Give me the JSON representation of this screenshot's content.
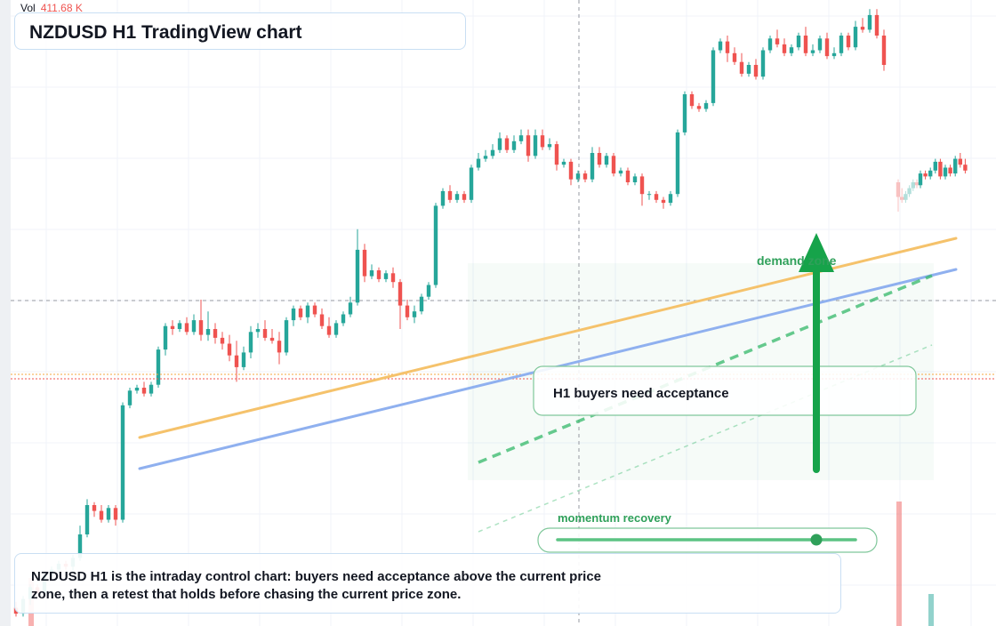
{
  "header": {
    "title": "NZDUSD H1 TradingView chart",
    "volume_label": "Vol",
    "volume_value": "411.68 K"
  },
  "annotations": {
    "callout": "H1 buyers need acceptance",
    "zone_label": "demand zone",
    "momentum_label": "momentum recovery",
    "note": "NZDUSD H1 is the intraday control chart: buyers need acceptance above the current price zone, then a retest that holds before chasing the current price zone."
  },
  "colors": {
    "up": "#26a69a",
    "down": "#ef5350",
    "accent": "#16a34a",
    "trend_orange": "#f5c26b",
    "trend_blue": "#8fb0ef"
  },
  "chart_data": {
    "type": "candlestick",
    "symbol": "NZDUSD",
    "timeframe": "H1",
    "candles": [
      [
        5,
        3,
        7,
        2
      ],
      [
        3,
        8,
        9,
        2
      ],
      [
        8,
        12,
        13,
        6
      ],
      [
        12,
        10,
        13,
        9
      ],
      [
        10,
        16,
        17,
        9
      ],
      [
        16,
        18,
        19,
        15
      ],
      [
        18,
        20,
        21,
        17
      ],
      [
        20,
        19,
        21,
        18
      ],
      [
        19,
        22,
        23,
        17
      ],
      [
        22,
        30,
        33,
        21
      ],
      [
        30,
        40,
        42,
        29
      ],
      [
        40,
        38,
        41,
        36
      ],
      [
        38,
        35,
        40,
        34
      ],
      [
        35,
        39,
        40,
        34
      ],
      [
        39,
        35,
        40,
        33
      ],
      [
        35,
        74,
        75,
        34
      ],
      [
        74,
        79,
        80,
        73
      ],
      [
        79,
        80,
        81,
        78
      ],
      [
        80,
        78,
        82,
        77
      ],
      [
        78,
        81,
        82,
        77
      ],
      [
        81,
        93,
        94,
        80
      ],
      [
        93,
        101,
        102,
        91
      ],
      [
        101,
        100,
        103,
        98
      ],
      [
        100,
        102,
        103,
        99
      ],
      [
        102,
        99,
        104,
        98
      ],
      [
        99,
        103,
        105,
        98
      ],
      [
        103,
        98,
        110,
        96
      ],
      [
        98,
        100,
        106,
        96
      ],
      [
        100,
        97,
        102,
        95
      ],
      [
        97,
        95,
        99,
        93
      ],
      [
        95,
        91,
        98,
        89
      ],
      [
        91,
        87,
        96,
        82
      ],
      [
        87,
        92,
        94,
        86
      ],
      [
        92,
        99,
        101,
        90
      ],
      [
        99,
        100,
        102,
        97
      ],
      [
        100,
        97,
        103,
        96
      ],
      [
        97,
        96,
        100,
        95
      ],
      [
        96,
        92,
        99,
        88
      ],
      [
        92,
        103,
        104,
        91
      ],
      [
        103,
        107,
        108,
        101
      ],
      [
        107,
        104,
        108,
        103
      ],
      [
        104,
        108,
        109,
        102
      ],
      [
        108,
        105,
        109,
        104
      ],
      [
        105,
        101,
        107,
        100
      ],
      [
        101,
        98,
        104,
        97
      ],
      [
        98,
        102,
        103,
        97
      ],
      [
        102,
        105,
        106,
        101
      ],
      [
        105,
        109,
        111,
        104
      ],
      [
        109,
        127,
        134,
        108
      ],
      [
        127,
        118,
        129,
        116
      ],
      [
        118,
        120,
        122,
        117
      ],
      [
        120,
        117,
        121,
        116
      ],
      [
        117,
        119,
        120,
        116
      ],
      [
        119,
        116,
        121,
        114
      ],
      [
        116,
        108,
        117,
        100
      ],
      [
        108,
        104,
        110,
        103
      ],
      [
        104,
        106,
        108,
        102
      ],
      [
        106,
        111,
        112,
        105
      ],
      [
        111,
        115,
        116,
        110
      ],
      [
        115,
        142,
        143,
        114
      ],
      [
        142,
        147,
        148,
        141
      ],
      [
        147,
        144,
        149,
        143
      ],
      [
        144,
        146,
        147,
        143
      ],
      [
        146,
        144,
        147,
        143
      ],
      [
        144,
        155,
        156,
        143
      ],
      [
        155,
        158,
        160,
        154
      ],
      [
        158,
        159,
        161,
        157
      ],
      [
        159,
        161,
        163,
        158
      ],
      [
        161,
        165,
        167,
        160
      ],
      [
        165,
        161,
        166,
        160
      ],
      [
        161,
        164,
        166,
        160
      ],
      [
        164,
        166,
        168,
        163
      ],
      [
        166,
        159,
        168,
        157
      ],
      [
        159,
        166,
        168,
        158
      ],
      [
        166,
        162,
        168,
        161
      ],
      [
        162,
        163,
        165,
        161
      ],
      [
        163,
        156,
        164,
        154
      ],
      [
        156,
        157,
        158,
        155
      ],
      [
        157,
        151,
        158,
        149
      ],
      [
        151,
        153,
        154,
        150
      ],
      [
        153,
        151,
        154,
        150
      ],
      [
        151,
        160,
        162,
        150
      ],
      [
        160,
        156,
        162,
        155
      ],
      [
        156,
        159,
        160,
        155
      ],
      [
        159,
        153,
        160,
        152
      ],
      [
        153,
        154,
        155,
        152
      ],
      [
        154,
        150,
        155,
        149
      ],
      [
        150,
        152,
        153,
        149
      ],
      [
        152,
        146,
        153,
        142
      ],
      [
        146,
        146,
        147,
        144
      ],
      [
        146,
        144,
        147,
        143
      ],
      [
        144,
        143,
        145,
        141
      ],
      [
        143,
        146,
        147,
        142
      ],
      [
        146,
        167,
        168,
        145
      ],
      [
        167,
        180,
        181,
        166
      ],
      [
        180,
        176,
        181,
        175
      ],
      [
        176,
        175,
        177,
        174
      ],
      [
        175,
        177,
        178,
        174
      ],
      [
        177,
        195,
        196,
        176
      ],
      [
        195,
        198,
        199,
        194
      ],
      [
        198,
        194,
        200,
        191
      ],
      [
        194,
        191,
        196,
        190
      ],
      [
        191,
        187,
        194,
        186
      ],
      [
        187,
        190,
        191,
        186
      ],
      [
        190,
        186,
        192,
        185
      ],
      [
        186,
        195,
        196,
        185
      ],
      [
        195,
        199,
        200,
        194
      ],
      [
        199,
        197,
        202,
        196
      ],
      [
        197,
        194,
        199,
        193
      ],
      [
        194,
        196,
        197,
        193
      ],
      [
        196,
        200,
        201,
        195
      ],
      [
        200,
        194,
        203,
        193
      ],
      [
        194,
        195,
        197,
        193
      ],
      [
        195,
        199,
        200,
        194
      ],
      [
        199,
        193,
        201,
        192
      ],
      [
        193,
        194,
        196,
        192
      ],
      [
        194,
        200,
        201,
        193
      ],
      [
        200,
        196,
        201,
        195
      ],
      [
        196,
        203,
        205,
        195
      ],
      [
        203,
        202,
        206,
        201
      ],
      [
        202,
        207,
        209,
        201
      ],
      [
        207,
        200,
        209,
        199
      ],
      [
        200,
        190,
        202,
        188
      ]
    ],
    "candles_right": [
      [
        150,
        145,
        151,
        140
      ],
      [
        145,
        144,
        148,
        143
      ],
      [
        144,
        146,
        147,
        143
      ],
      [
        146,
        148,
        149,
        145
      ],
      [
        148,
        150,
        151,
        147
      ],
      [
        150,
        149,
        151,
        148
      ],
      [
        149,
        153,
        154,
        148
      ],
      [
        153,
        152,
        154,
        151
      ],
      [
        152,
        154,
        155,
        151
      ],
      [
        154,
        157,
        158,
        153
      ],
      [
        157,
        152,
        158,
        151
      ],
      [
        152,
        155,
        156,
        151
      ],
      [
        155,
        153,
        156,
        152
      ],
      [
        153,
        158,
        159,
        152
      ],
      [
        158,
        156,
        160,
        155
      ],
      [
        156,
        154,
        158,
        153
      ]
    ],
    "volume_visible": "411.68 K"
  }
}
